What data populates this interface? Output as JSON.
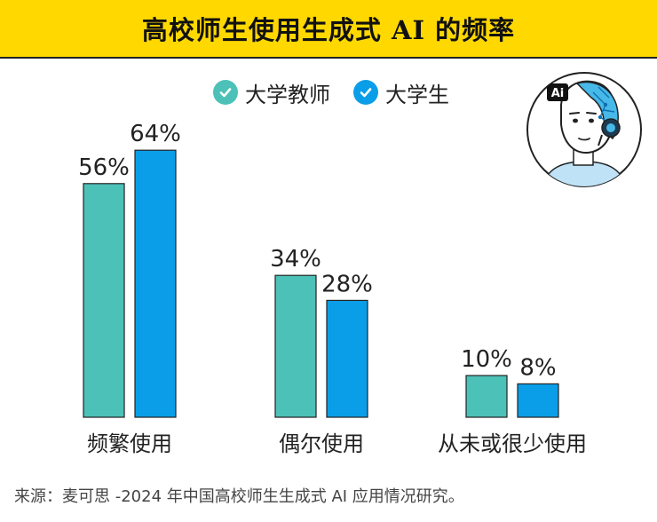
{
  "title": "高校师生使用生成式 AI 的频率",
  "source": "来源：麦可思 -2024 年中国高校师生生成式 AI 应用情况研究。",
  "avatar_badge": "Ai",
  "colors": {
    "teachers": "#4cc1b8",
    "students": "#0b9ee8",
    "banner": "#ffd800"
  },
  "chart_data": {
    "type": "bar",
    "title": "高校师生使用生成式 AI 的频率",
    "categories": [
      "频繁使用",
      "偶尔使用",
      "从未或很少使用"
    ],
    "series": [
      {
        "name": "大学教师",
        "values": [
          56,
          34,
          10
        ]
      },
      {
        "name": "大学生",
        "values": [
          64,
          28,
          8
        ]
      }
    ],
    "unit": "%",
    "ylim": [
      0,
      100
    ],
    "grid": false,
    "legend": "top"
  }
}
